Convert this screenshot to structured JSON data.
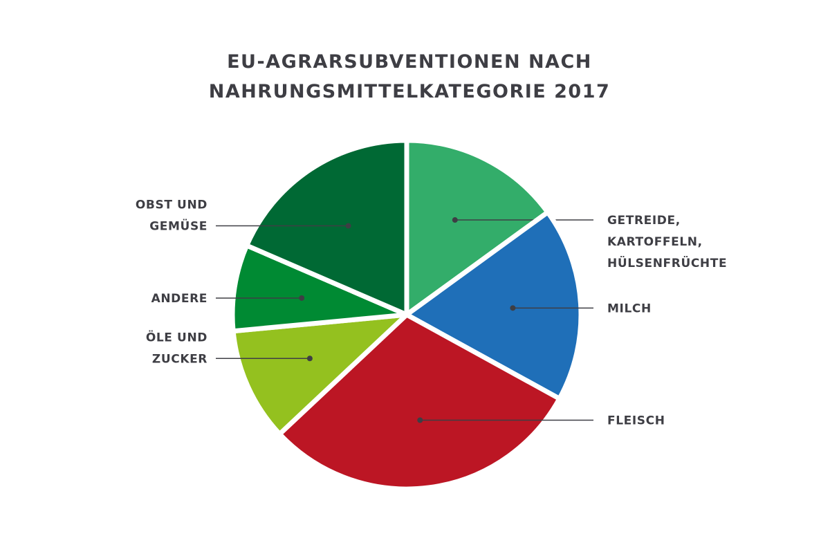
{
  "chart_data": {
    "type": "pie",
    "title": [
      "EU-AGRARSUBVENTIONEN NACH",
      "NAHRUNGSMITTELKATEGORIE 2017"
    ],
    "slices": [
      {
        "label": [
          "GETREIDE,",
          "KARTOFFELN,",
          "HÜLSENFRÜCHTE"
        ],
        "value": 15,
        "color": "#33ad6a",
        "side": "right"
      },
      {
        "label": [
          "MILCH"
        ],
        "value": 18,
        "color": "#1f6fb8",
        "side": "right"
      },
      {
        "label": [
          "FLEISCH"
        ],
        "value": 30,
        "color": "#bc1624",
        "side": "right"
      },
      {
        "label": [
          "ÖLE UND",
          "ZUCKER"
        ],
        "value": 10.5,
        "color": "#94c11f",
        "side": "left"
      },
      {
        "label": [
          "ANDERE"
        ],
        "value": 8,
        "color": "#008a33",
        "side": "left"
      },
      {
        "label": [
          "OBST UND",
          "GEMÜSE"
        ],
        "value": 18.5,
        "color": "#006934",
        "side": "left"
      }
    ],
    "start_angle": "12 o'clock",
    "direction": "clockwise",
    "legend": "none (direct callout labels)"
  }
}
